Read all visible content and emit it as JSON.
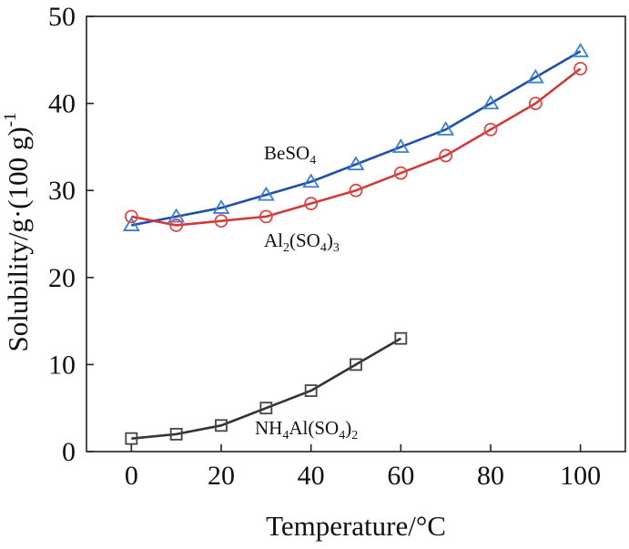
{
  "chart_data": {
    "type": "line",
    "xlabel": "Temperature/°C",
    "ylabel": "Solubility/g·(100 g)",
    "ylabel_sup": "-1",
    "xlim": [
      -10,
      110
    ],
    "ylim": [
      0,
      50
    ],
    "xticks": [
      0,
      20,
      40,
      60,
      80,
      100
    ],
    "yticks": [
      0,
      10,
      20,
      30,
      40,
      50
    ],
    "grid": false,
    "series": [
      {
        "name": "BeSO4",
        "label_parts": [
          {
            "t": "BeSO"
          },
          {
            "t": "4",
            "sub": true
          }
        ],
        "marker": "triangle",
        "line_color": "#1f4fa8",
        "marker_color": "#3a7fd5",
        "x": [
          0,
          10,
          20,
          30,
          40,
          50,
          60,
          70,
          80,
          90,
          100
        ],
        "y": [
          26,
          27,
          28,
          29.5,
          31,
          33,
          35,
          37,
          40,
          43,
          46
        ]
      },
      {
        "name": "Al2(SO4)3",
        "label_parts": [
          {
            "t": "Al"
          },
          {
            "t": "2",
            "sub": true
          },
          {
            "t": "(SO"
          },
          {
            "t": "4",
            "sub": true
          },
          {
            "t": ")"
          },
          {
            "t": "3",
            "sub": true
          }
        ],
        "marker": "circle",
        "line_color": "#d03a3a",
        "marker_color": "#d94848",
        "x": [
          0,
          10,
          20,
          30,
          40,
          50,
          60,
          70,
          80,
          90,
          100
        ],
        "y": [
          27,
          26,
          26.5,
          27,
          28.5,
          30,
          32,
          34,
          37,
          40,
          44
        ]
      },
      {
        "name": "NH4Al(SO4)2",
        "label_parts": [
          {
            "t": "NH"
          },
          {
            "t": "4",
            "sub": true
          },
          {
            "t": "Al(SO"
          },
          {
            "t": "4",
            "sub": true
          },
          {
            "t": ")"
          },
          {
            "t": "2",
            "sub": true
          }
        ],
        "marker": "square",
        "line_color": "#333333",
        "marker_color": "#444444",
        "x": [
          0,
          10,
          20,
          30,
          40,
          50,
          60
        ],
        "y": [
          1.5,
          2,
          3,
          5,
          7,
          10,
          13
        ]
      }
    ]
  }
}
